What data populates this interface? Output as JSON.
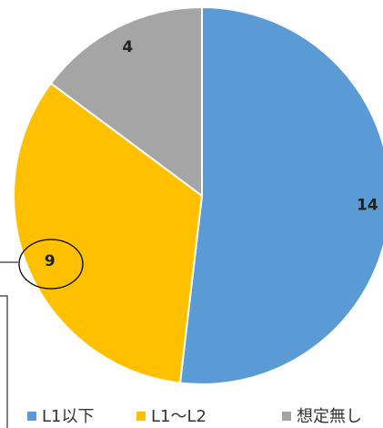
{
  "chart_data": {
    "type": "pie",
    "categories": [
      "L1以下",
      "L1～L2",
      "想定無し"
    ],
    "values": [
      14,
      9,
      4
    ],
    "colors": [
      "#5b9bd5",
      "#ffc000",
      "#a5a5a5"
    ],
    "legend": "bottom"
  }
}
